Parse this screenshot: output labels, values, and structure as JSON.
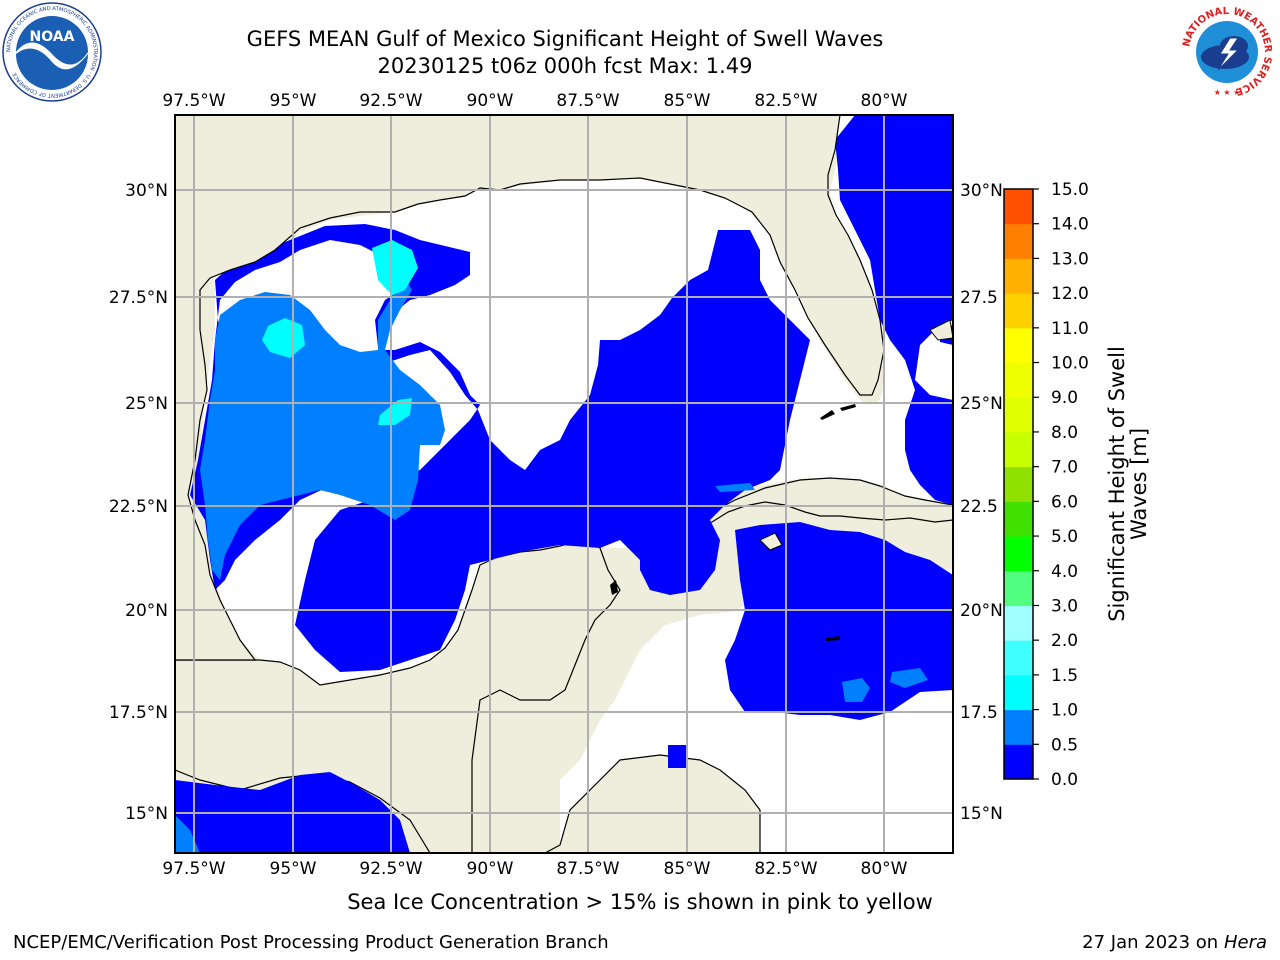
{
  "header": {
    "title_line1": "GEFS MEAN Gulf of Mexico Significant Height of Swell Waves",
    "title_line2": "20230125 t06z 000h fcst   Max: 1.49"
  },
  "map": {
    "lon_labels": [
      "97.5°W",
      "95°W",
      "92.5°W",
      "90°W",
      "87.5°W",
      "85°W",
      "82.5°W",
      "80°W"
    ],
    "lat_labels_left": [
      "30°N",
      "27.5°N",
      "25°N",
      "22.5°N",
      "20°N",
      "17.5°N",
      "15°N"
    ],
    "lat_labels_right": [
      "30°N",
      "27.5",
      "25°N",
      "22.5",
      "20°N",
      "17.5",
      "15°N"
    ],
    "colors": {
      "land": "#efeedc",
      "water_white": "#ffffff",
      "swell_0_0_5": "#0000ff",
      "swell_0_5_1_0": "#0080ff",
      "swell_1_0_1_5": "#00ffff",
      "swell_1_5_2_0": "#40ffff",
      "grid": "#b0b0b0",
      "coast": "#000000"
    }
  },
  "colorbar": {
    "title_line1": "Significant Height of Swell",
    "title_line2": "Waves [m]",
    "tick_labels": [
      "15.0",
      "14.0",
      "13.0",
      "12.0",
      "11.0",
      "10.0",
      "9.0",
      "8.0",
      "7.0",
      "6.0",
      "5.0",
      "4.0",
      "3.0",
      "2.0",
      "1.5",
      "1.0",
      "0.5",
      "0.0"
    ],
    "colors_bottom_to_top": [
      "#0000ff",
      "#0080ff",
      "#00ffff",
      "#40ffff",
      "#a0ffff",
      "#50ff80",
      "#00ff00",
      "#40e000",
      "#90e000",
      "#c8ff00",
      "#e0ff00",
      "#f0ff00",
      "#ffff00",
      "#ffd000",
      "#ffb000",
      "#ff8000",
      "#ff5000",
      "#ff2000",
      "#ff0000"
    ]
  },
  "ice_note": "Sea Ice Concentration > 15% is shown in pink to yellow",
  "footer": {
    "left": "NCEP/EMC/Verification Post Processing Product Generation Branch",
    "right_date": "27 Jan 2023 on ",
    "right_host": "Hera"
  },
  "logos": {
    "noaa_text": "NOAA",
    "noaa_ring_text": "NATIONAL OCEANIC AND ATMOSPHERIC ADMINISTRATION · U.S. DEPARTMENT OF COMMERCE",
    "nws_ring_text": "NATIONAL WEATHER SERVICE"
  }
}
